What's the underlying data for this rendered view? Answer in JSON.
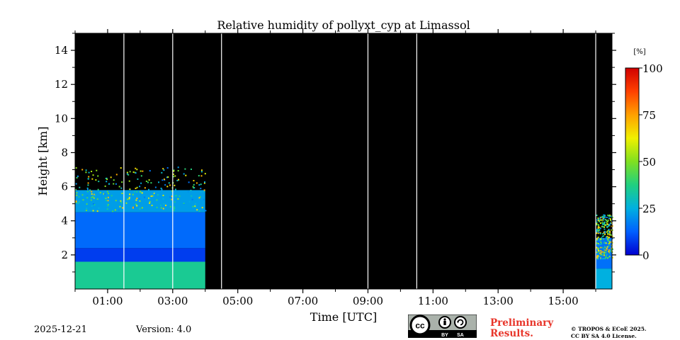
{
  "chart_data": {
    "type": "heatmap",
    "title": "Relative humidity of pollyxt_cyp at Limassol",
    "xlabel": "Time [UTC]",
    "ylabel": "Height [km]",
    "xlim_hours": [
      0,
      16.5
    ],
    "ylim_km": [
      0,
      15
    ],
    "x_ticks": [
      {
        "hour": 1,
        "label": "01:00"
      },
      {
        "hour": 3,
        "label": "03:00"
      },
      {
        "hour": 5,
        "label": "05:00"
      },
      {
        "hour": 7,
        "label": "07:00"
      },
      {
        "hour": 9,
        "label": "09:00"
      },
      {
        "hour": 11,
        "label": "11:00"
      },
      {
        "hour": 13,
        "label": "13:00"
      },
      {
        "hour": 15,
        "label": "15:00"
      }
    ],
    "y_ticks": [
      {
        "value": 2,
        "label": "2"
      },
      {
        "value": 4,
        "label": "4"
      },
      {
        "value": 6,
        "label": "6"
      },
      {
        "value": 8,
        "label": "8"
      },
      {
        "value": 10,
        "label": "10"
      },
      {
        "value": 12,
        "label": "12"
      },
      {
        "value": 14,
        "label": "14"
      }
    ],
    "background_color": "#000000",
    "gap_lines_hours": [
      1.5,
      3.0,
      4.5,
      9.0,
      10.5,
      16.0
    ],
    "data_segments": [
      {
        "start_hour": 0.0,
        "end_hour": 4.0,
        "top_km": 5.8,
        "layers": [
          {
            "from_km": 0.0,
            "to_km": 1.6,
            "rh": 35
          },
          {
            "from_km": 1.6,
            "to_km": 2.4,
            "rh": 8
          },
          {
            "from_km": 2.4,
            "to_km": 4.5,
            "rh": 14
          },
          {
            "from_km": 4.5,
            "to_km": 5.8,
            "rh": 22
          }
        ]
      },
      {
        "start_hour": 16.0,
        "end_hour": 16.5,
        "top_km": 3.0,
        "layers": [
          {
            "from_km": 0.0,
            "to_km": 1.2,
            "rh": 25
          },
          {
            "from_km": 1.2,
            "to_km": 3.0,
            "rh": 15
          }
        ]
      }
    ],
    "colorbar": {
      "unit_label": "[%]",
      "min": 0,
      "max": 100,
      "ticks": [
        {
          "value": 0,
          "label": "0"
        },
        {
          "value": 25,
          "label": "25"
        },
        {
          "value": 50,
          "label": "50"
        },
        {
          "value": 75,
          "label": "75"
        },
        {
          "value": 100,
          "label": "100"
        }
      ],
      "colors": [
        "#0000d0",
        "#0060ff",
        "#00b0e0",
        "#20d080",
        "#80e020",
        "#f0f000",
        "#ffa000",
        "#ff4000",
        "#d00000"
      ]
    }
  },
  "footer": {
    "date": "2025-12-21",
    "version": "Version: 4.0",
    "preliminary": [
      "Preliminary",
      "Results."
    ],
    "copyright": [
      "© TROPOS & ECoE 2025.",
      "CC BY SA 4.0 License."
    ],
    "license_badge": [
      "cc",
      "BY",
      "SA"
    ]
  }
}
